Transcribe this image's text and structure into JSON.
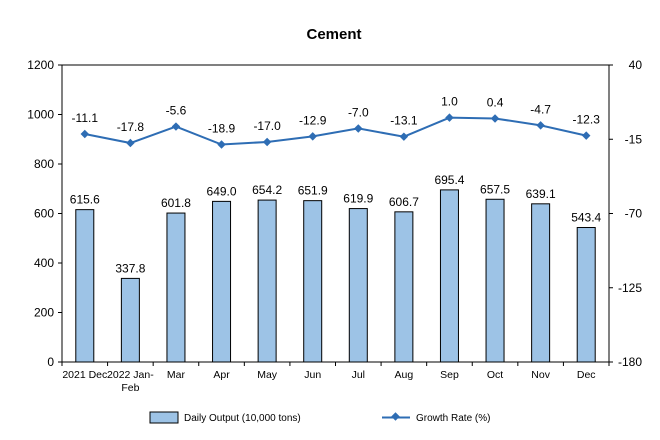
{
  "chart_data": {
    "type": "bar",
    "title": "Cement",
    "categories": [
      "2021 Dec",
      "2022 Jan-Feb",
      "Mar",
      "Apr",
      "May",
      "Jun",
      "Jul",
      "Aug",
      "Sep",
      "Oct",
      "Nov",
      "Dec"
    ],
    "series": [
      {
        "name": "Daily Output (10,000 tons)",
        "type": "bar",
        "axis": "left",
        "color": "#9DC3E6",
        "values": [
          615.6,
          337.8,
          601.8,
          649.0,
          654.2,
          651.9,
          619.9,
          606.7,
          695.4,
          657.5,
          639.1,
          543.4
        ],
        "labels": [
          "615.6",
          "337.8",
          "601.8",
          "649.0",
          "654.2",
          "651.9",
          "619.9",
          "606.7",
          "695.4",
          "657.5",
          "639.1",
          "543.4"
        ]
      },
      {
        "name": "Growth Rate (%)",
        "type": "line",
        "axis": "right",
        "color": "#2E6DB4",
        "values": [
          -11.1,
          -17.8,
          -5.6,
          -18.9,
          -17.0,
          -12.9,
          -7.0,
          -13.1,
          1.0,
          0.4,
          -4.7,
          -12.3
        ],
        "labels": [
          "-11.1",
          "-17.8",
          "-5.6",
          "-18.9",
          "-17.0",
          "-12.9",
          "-7.0",
          "-13.1",
          "1.0",
          "0.4",
          "-4.7",
          "-12.3"
        ]
      }
    ],
    "y_left": {
      "range": [
        0,
        1200
      ],
      "ticks": [
        0,
        200,
        400,
        600,
        800,
        1000,
        1200
      ],
      "tick_labels": [
        "0",
        "200",
        "400",
        "600",
        "800",
        "1000",
        "1200"
      ]
    },
    "y_right": {
      "range": [
        -180,
        40
      ],
      "ticks": [
        -180,
        -125,
        -70,
        -15,
        40
      ],
      "tick_labels": [
        "-180",
        "-125",
        "-70",
        "-15",
        "40"
      ]
    },
    "grid": false,
    "legend": "bottom"
  }
}
